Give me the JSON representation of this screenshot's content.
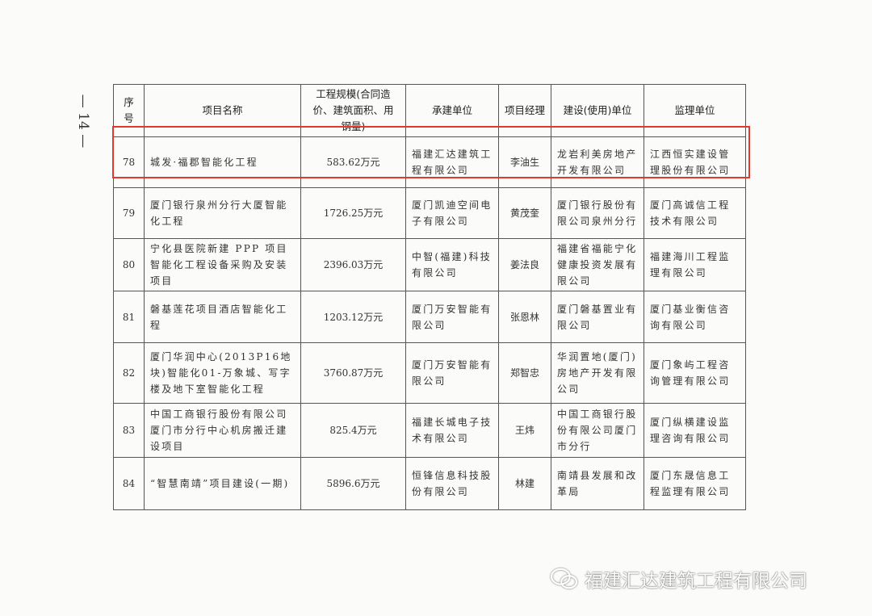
{
  "page_number": "— 14 —",
  "table": {
    "headers": [
      "序号",
      "项目名称",
      "工程规模(合同造价、建筑面积、用钢量)",
      "承建单位",
      "项目经理",
      "建设(使用)单位",
      "监理单位"
    ],
    "rows": [
      {
        "no": "78",
        "name": "城发·福郡智能化工程",
        "scale": "583.62万元",
        "contractor": "福建汇达建筑工程有限公司",
        "manager": "李油生",
        "owner": "龙岩利美房地产开发有限公司",
        "supervisor": "江西恒实建设管理股份有限公司"
      },
      {
        "no": "79",
        "name": "厦门银行泉州分行大厦智能化工程",
        "scale": "1726.25万元",
        "contractor": "厦门凯迪空间电子有限公司",
        "manager": "黄茂奎",
        "owner": "厦门银行股份有限公司泉州分行",
        "supervisor": "厦门高诚信工程技术有限公司"
      },
      {
        "no": "80",
        "name": "宁化县医院新建 PPP 项目智能化工程设备采购及安装项目",
        "scale": "2396.03万元",
        "contractor": "中智(福建)科技有限公司",
        "manager": "姜法良",
        "owner": "福建省福能宁化健康投资发展有限公司",
        "supervisor": "福建海川工程监理有限公司"
      },
      {
        "no": "81",
        "name": "磐基莲花项目酒店智能化工程",
        "scale": "1203.12万元",
        "contractor": "厦门万安智能有限公司",
        "manager": "张恩林",
        "owner": "厦门磐基置业有限公司",
        "supervisor": "厦门基业衡信咨询有限公司"
      },
      {
        "no": "82",
        "name": "厦门华润中心(2013P16地块)智能化01-万象城、写字楼及地下室智能化工程",
        "scale": "3760.87万元",
        "contractor": "厦门万安智能有限公司",
        "manager": "郑智忠",
        "owner": "华润置地(厦门)房地产开发有限公司",
        "supervisor": "厦门象屿工程咨询管理有限公司"
      },
      {
        "no": "83",
        "name": "中国工商银行股份有限公司厦门市分行中心机房搬迁建设项目",
        "scale": "825.4万元",
        "contractor": "福建长城电子技术有限公司",
        "manager": "王炜",
        "owner": "中国工商银行股份有限公司厦门市分行",
        "supervisor": "厦门纵横建设监理咨询有限公司"
      },
      {
        "no": "84",
        "name": "“智慧南靖”项目建设(一期)",
        "scale": "5896.6万元",
        "contractor": "恒锋信息科技股份有限公司",
        "manager": "林建",
        "owner": "南靖县发展和改革局",
        "supervisor": "厦门东晟信息工程监理有限公司"
      }
    ],
    "highlight_row": "78",
    "highlight_color": "#e03a2f"
  },
  "watermark": {
    "text": "福建汇达建筑工程有限公司",
    "icon": "wechat-icon"
  }
}
